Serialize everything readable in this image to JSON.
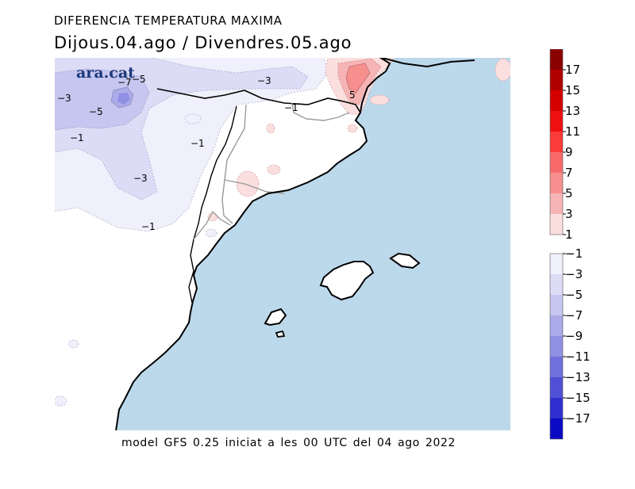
{
  "title": "DIFERENCIA TEMPERATURA MAXIMA",
  "subtitle": "Dijous.04.ago / Divendres.05.ago",
  "footer": "model GFS 0.25 iniciat a les 00 UTC del 04 ago 2022",
  "logo_text": "ara.cat",
  "colors": {
    "sea": "#bcd9ec",
    "land": "#ffffff",
    "coast": "#000000",
    "border": "#9a9a9a"
  },
  "contour_labels": [
    {
      "text": "−7",
      "id": "a"
    },
    {
      "text": "−5",
      "id": "b"
    },
    {
      "text": "−3",
      "id": "c"
    },
    {
      "text": "−3",
      "id": "d"
    },
    {
      "text": "−5",
      "id": "e"
    },
    {
      "text": "−1",
      "id": "f"
    },
    {
      "text": "−1",
      "id": "g"
    },
    {
      "text": "−1",
      "id": "h"
    },
    {
      "text": "−3",
      "id": "i"
    },
    {
      "text": "−1",
      "id": "j"
    },
    {
      "text": "5",
      "id": "k"
    }
  ],
  "colorbar": {
    "positive": [
      {
        "label": "17",
        "color": "#8b0000"
      },
      {
        "label": "15",
        "color": "#b00000"
      },
      {
        "label": "13",
        "color": "#d40000"
      },
      {
        "label": "11",
        "color": "#ee1010"
      },
      {
        "label": "9",
        "color": "#fb3a3a"
      },
      {
        "label": "7",
        "color": "#f86a6a"
      },
      {
        "label": "5",
        "color": "#f78f8f"
      },
      {
        "label": "3",
        "color": "#f6b4b4"
      },
      {
        "label": "1",
        "color": "#fbdede"
      }
    ],
    "negative": [
      {
        "label": "−1",
        "color": "#f0f0fc"
      },
      {
        "label": "−3",
        "color": "#dcdcf6"
      },
      {
        "label": "−5",
        "color": "#c6c6f0"
      },
      {
        "label": "−7",
        "color": "#ababea"
      },
      {
        "label": "−9",
        "color": "#9090e4"
      },
      {
        "label": "−11",
        "color": "#7070dc"
      },
      {
        "label": "−13",
        "color": "#5050d6"
      },
      {
        "label": "−15",
        "color": "#2f2fd0"
      },
      {
        "label": "−17",
        "color": "#0a0ac4"
      }
    ]
  }
}
